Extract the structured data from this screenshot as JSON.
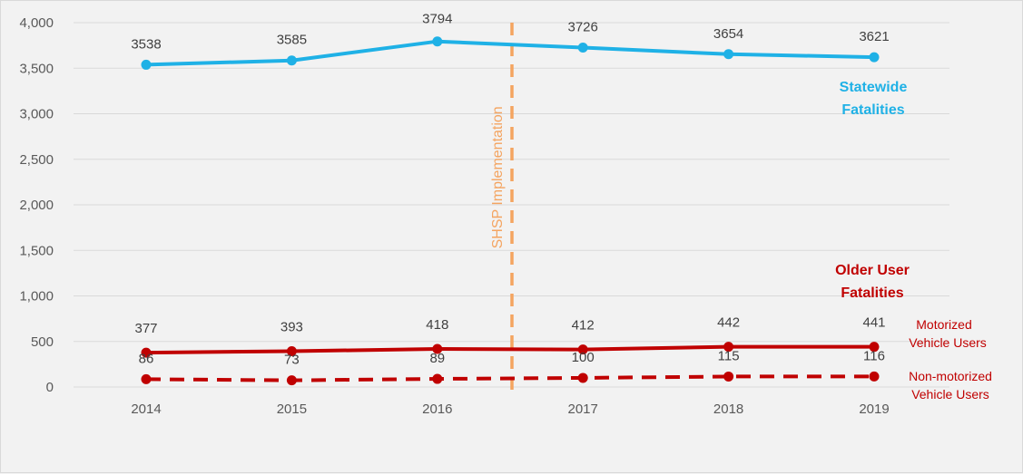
{
  "chart_data": {
    "type": "line",
    "x": [
      "2014",
      "2015",
      "2016",
      "2017",
      "2018",
      "2019"
    ],
    "ylim": [
      0,
      4000
    ],
    "yticks": [
      "0",
      "500",
      "1,000",
      "1,500",
      "2,000",
      "2,500",
      "3,000",
      "3,500",
      "4,000"
    ],
    "grid": true,
    "series": [
      {
        "name": "Statewide Fatalities",
        "values": [
          3538,
          3585,
          3794,
          3726,
          3654,
          3621
        ],
        "color": "#1fb1e6",
        "dash": false,
        "labels": [
          "3538",
          "3585",
          "3794",
          "3726",
          "3654",
          "3621"
        ]
      },
      {
        "name": "Motorized Vehicle Users",
        "values": [
          377,
          393,
          418,
          412,
          442,
          441
        ],
        "color": "#c00000",
        "dash": false,
        "labels": [
          "377",
          "393",
          "418",
          "412",
          "442",
          "441"
        ]
      },
      {
        "name": "Non-motorized Vehicle Users",
        "values": [
          86,
          73,
          89,
          100,
          115,
          116
        ],
        "color": "#c00000",
        "dash": true,
        "labels": [
          "86",
          "73",
          "89",
          "100",
          "115",
          "116"
        ]
      }
    ],
    "annotations": {
      "implementation_line": "SHSP Implementation",
      "implementation_color": "#f4a460",
      "statewide_label": [
        "Statewide",
        "Fatalities"
      ],
      "older_user_label": [
        "Older User",
        "Fatalities"
      ],
      "motorized_label": [
        "Motorized",
        "Vehicle Users"
      ],
      "nonmotorized_label": [
        "Non-motorized",
        "Vehicle Users"
      ]
    }
  }
}
